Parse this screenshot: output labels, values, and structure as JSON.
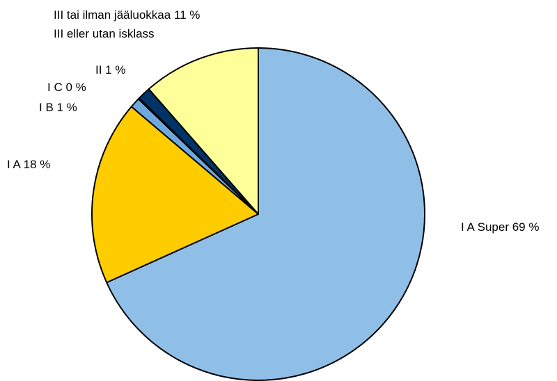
{
  "chart_data": {
    "type": "pie",
    "title": "",
    "slices": [
      {
        "name": "I A Super",
        "value": 69,
        "color": "#8fbfe6",
        "label_lines": [
          "I A Super  69 %"
        ]
      },
      {
        "name": "I A",
        "value": 18,
        "color": "#ffcc00",
        "label_lines": [
          "I A  18 %"
        ]
      },
      {
        "name": "I B",
        "value": 1,
        "color": "#6fa8dc",
        "label_lines": [
          "I B  1 %"
        ]
      },
      {
        "name": "I C",
        "value": 0,
        "color": "#003366",
        "label_lines": [
          "I C  0 %"
        ]
      },
      {
        "name": "II",
        "value": 1,
        "color": "#003366",
        "label_lines": [
          "II  1 %"
        ]
      },
      {
        "name": "III tai ilman jääluokkaa / III eller utan isklass",
        "value": 11,
        "color": "#ffff99",
        "label_lines": [
          "III tai ilman jääluokkaa 11 %",
          "III eller utan isklass"
        ]
      }
    ]
  }
}
